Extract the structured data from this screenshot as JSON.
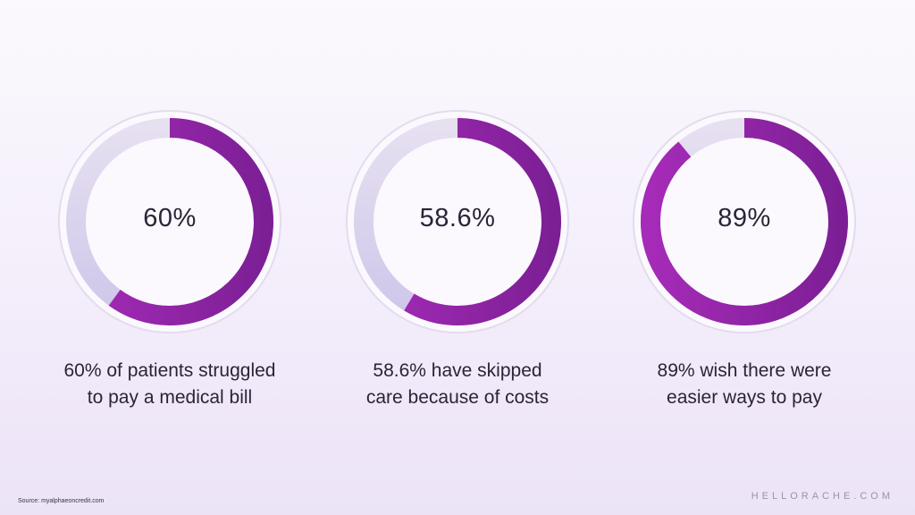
{
  "chart_data": [
    {
      "type": "pie",
      "value_label": "60%",
      "values": [
        60,
        40
      ],
      "caption_line1": "60% of patients struggled",
      "caption_line2": "to pay a medical bill"
    },
    {
      "type": "pie",
      "value_label": "58.6%",
      "values": [
        58.6,
        41.4
      ],
      "caption_line1": "58.6% have skipped",
      "caption_line2": "care because of costs"
    },
    {
      "type": "pie",
      "value_label": "89%",
      "values": [
        89,
        11
      ],
      "caption_line1": "89% wish there were",
      "caption_line2": "easier ways to pay"
    }
  ],
  "colors": {
    "fill": "#a62bb8",
    "fill_dark": "#7c1f95",
    "track": "#e6e0f1",
    "track_low": "#cfc6ea",
    "outer_ring": "#e3dced"
  },
  "footer": {
    "source": "Source: myalphaeoncredit.com",
    "brand": "HELLORACHE.COM"
  }
}
